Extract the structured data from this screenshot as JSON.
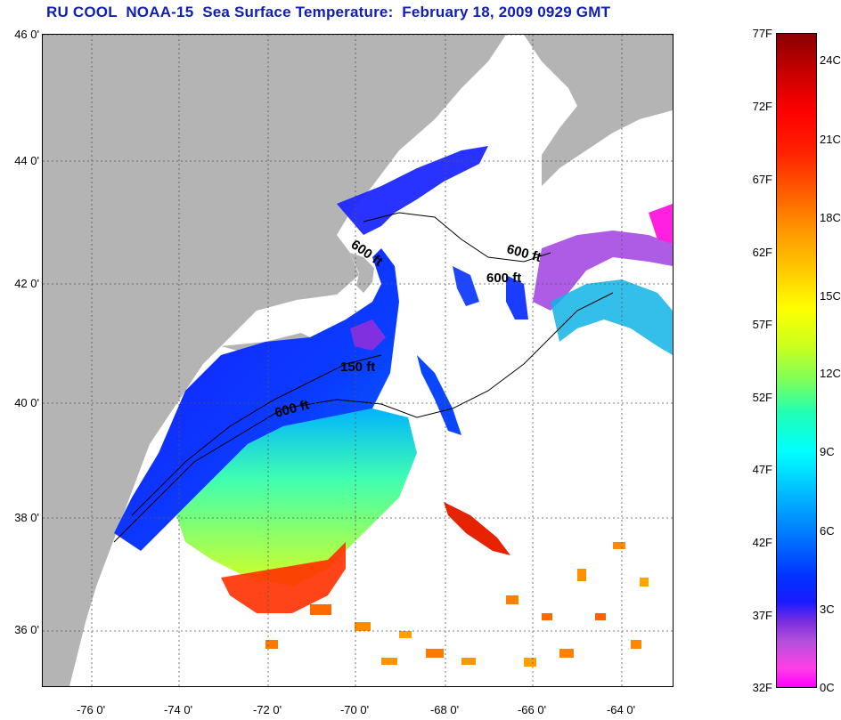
{
  "title": "RU COOL  NOAA-15  Sea Surface Temperature:  February 18, 2009 0929 GMT",
  "map": {
    "latitude_labels": [
      "46 0'",
      "44 0'",
      "42 0'",
      "40 0'",
      "38 0'",
      "36 0'"
    ],
    "longitude_labels": [
      "-76 0'",
      "-74 0'",
      "-72 0'",
      "-70 0'",
      "-68 0'",
      "-66 0'",
      "-64 0'"
    ],
    "contour_labels": [
      "600 ft",
      "600 ft",
      "600 ft",
      "150 ft",
      "600 ft"
    ],
    "land_color": "#b4b4b4",
    "cloud_color": "#ffffff"
  },
  "colorbar": {
    "fahrenheit_labels": [
      "77F",
      "72F",
      "67F",
      "62F",
      "57F",
      "52F",
      "47F",
      "42F",
      "37F",
      "32F"
    ],
    "celsius_labels": [
      "24C",
      "21C",
      "18C",
      "15C",
      "12C",
      "9C",
      "6C",
      "3C",
      "0C"
    ]
  }
}
